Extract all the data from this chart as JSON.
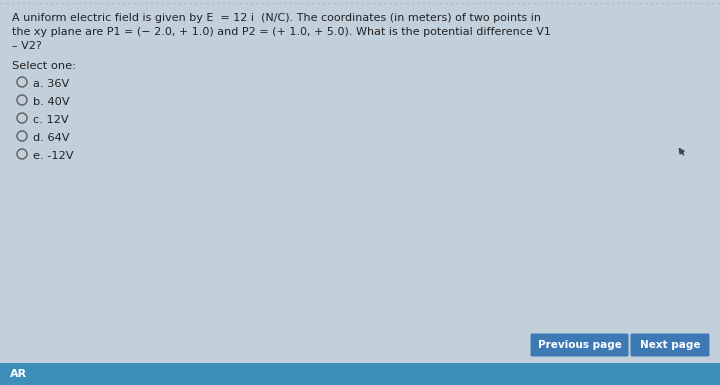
{
  "bg_color": "#c2d0dc",
  "card_color": "#d8e4ec",
  "question_text_line1": "A uniform electric field is given by E  = 12 i  (N/C). The coordinates (in meters) of two points in",
  "question_text_line2": "the xy plane are P1 = (− 2.0, + 1.0) and P2 = (+ 1.0, + 5.0). What is the potential difference V1",
  "question_text_line3": "– V2?",
  "select_one": "Select one:",
  "options": [
    "a. 36V",
    "b. 40V",
    "c. 12V",
    "d. 64V",
    "e. -12V"
  ],
  "button1_text": "Previous page",
  "button2_text": "Next page",
  "button_color": "#3d7ab5",
  "button_text_color": "#ffffff",
  "text_color": "#222222",
  "footer_text": "AR",
  "footer_bg": "#3d8fba",
  "top_border_color": "#aabfcc",
  "cursor_color": "#444444"
}
